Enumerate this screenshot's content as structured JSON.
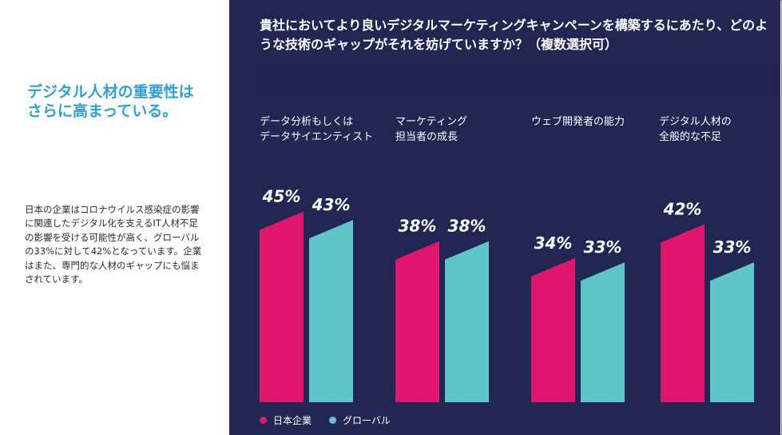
{
  "left": {
    "headline": "デジタル人材の重要性はさらに高まっている。",
    "body": "日本の企業はコロナウイルス感染症の影響に関連したデジタル化を支えるIT人材不足の影響を受ける可能性が高く、グローバルの33%に対して42%となっています。企業はまた、専門的な人材のギャップにも悩まされています。"
  },
  "chart_data": {
    "type": "bar",
    "title": "貴社においてより良いデジタルマーケティングキャンペーンを構築するにあたり、どのような技術のギャップがそれを妨げていますか？（複数選択可）",
    "categories": [
      "データ分析もしくは\nデータサイエンティスト",
      "マーケティング\n担当者の成長",
      "ウェブ開発者の能力",
      "デジタル人材の\n全般的な不足"
    ],
    "series": [
      {
        "name": "日本企業",
        "values": [
          45,
          38,
          34,
          42
        ],
        "labels": [
          "45%",
          "38%",
          "34%",
          "42%"
        ],
        "color": "#e0156b"
      },
      {
        "name": "グローバル",
        "values": [
          43,
          38,
          33,
          33
        ],
        "labels": [
          "43%",
          "38%",
          "33%",
          "33%"
        ],
        "color": "#5ec6c8"
      }
    ],
    "ylim": [
      0,
      50
    ],
    "grid": false,
    "legend": "bottom-left"
  },
  "colors": {
    "panel_bg": "#212652",
    "accent_blue": "#2ea0d8"
  }
}
